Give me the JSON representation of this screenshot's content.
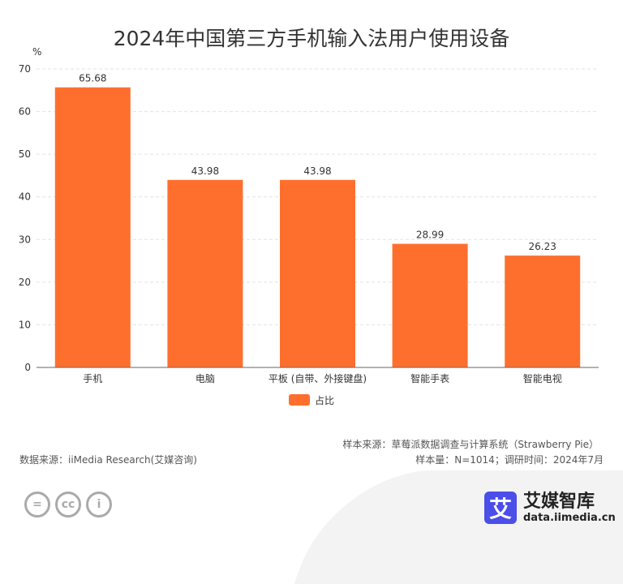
{
  "chart_data": {
    "type": "bar",
    "title": "2024年中国第三方手机输入法用户使用设备",
    "ylabel": "%",
    "ylim": [
      0,
      70
    ],
    "yticks": [
      0,
      10,
      20,
      30,
      40,
      50,
      60,
      70
    ],
    "categories": [
      "手机",
      "电脑",
      "平板 (自带、外接键盘)",
      "智能手表",
      "智能电视"
    ],
    "series": [
      {
        "name": "占比",
        "values": [
          65.68,
          43.98,
          43.98,
          28.99,
          26.23
        ],
        "color": "#fe6f2e"
      }
    ],
    "legend": "bottom",
    "grid": true
  },
  "footer": {
    "sample_source": "样本来源：草莓派数据调查与计算系统（Strawberry Pie）",
    "sample_size": "样本量：N=1014；调研时间：2024年7月",
    "data_source": "数据来源：iiMedia Research(艾媒咨询)",
    "logo_char": "艾",
    "logo_name": "艾媒智库",
    "logo_url": "data.iimedia.cn"
  }
}
